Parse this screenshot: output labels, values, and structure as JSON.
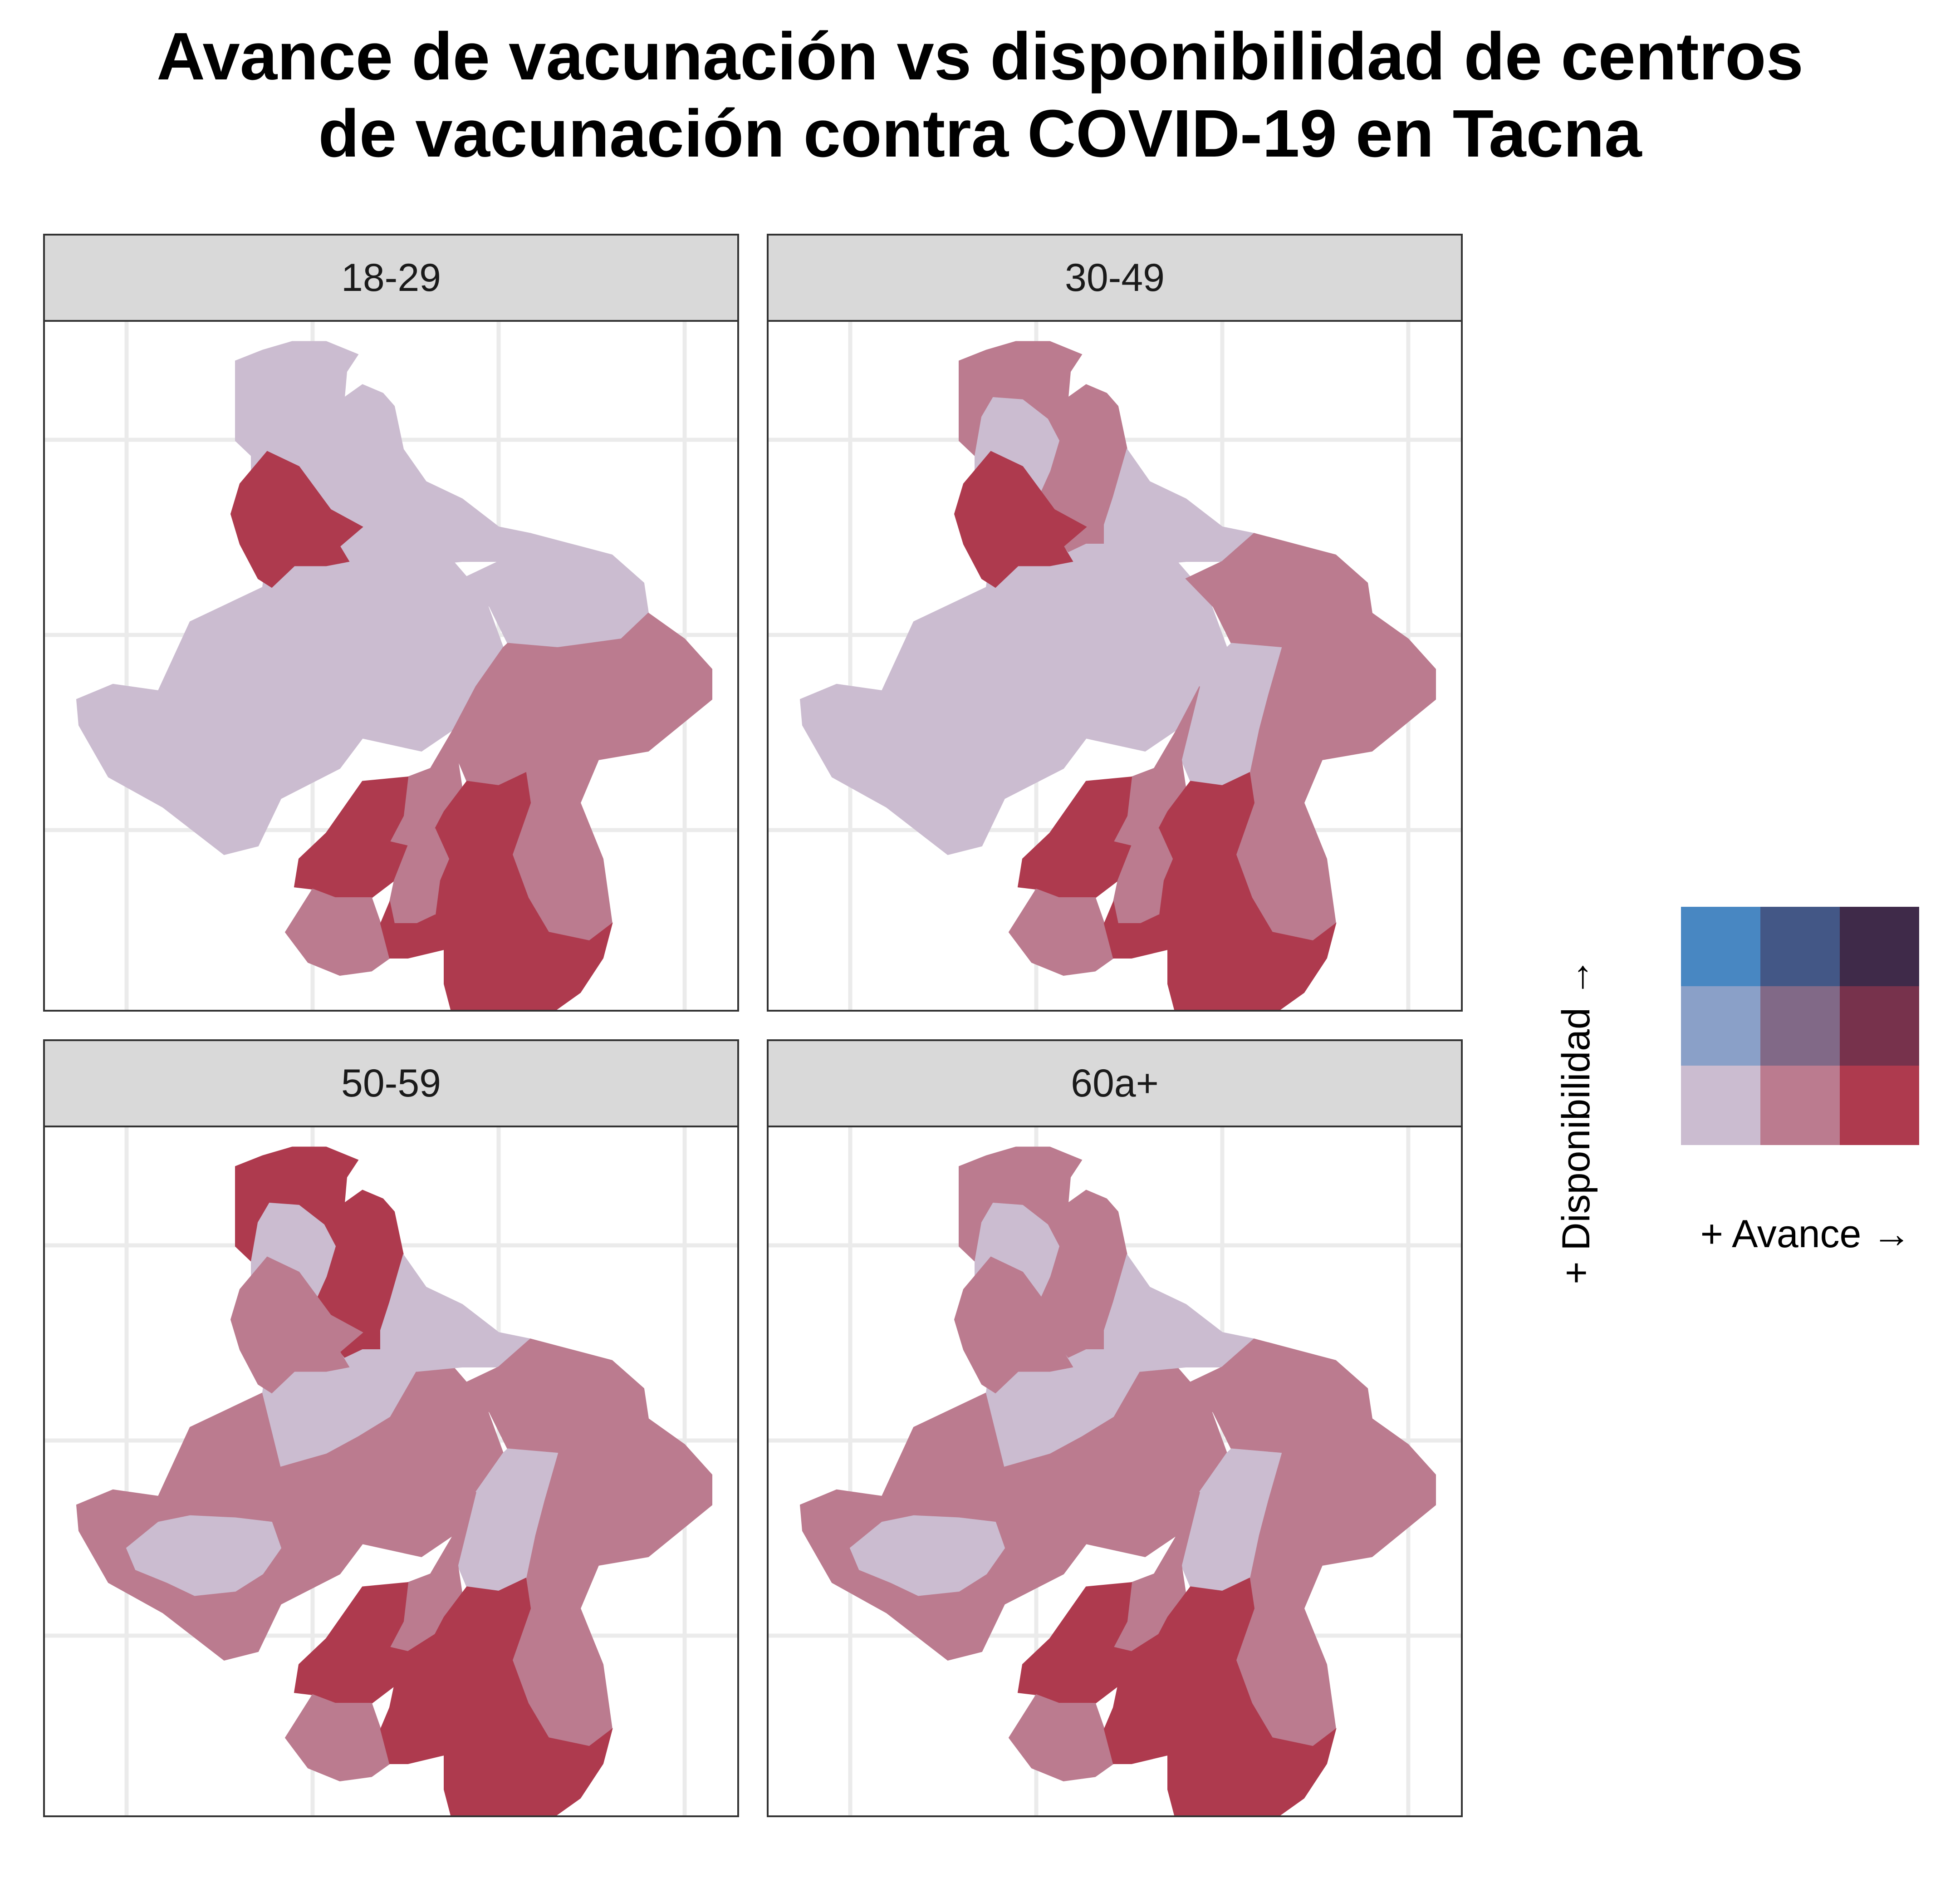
{
  "title": "Avance de vacunación vs disponibilidad de centros\nde vacunación contra COVID-19 en Tacna",
  "palette": {
    "c11": "#cbbcd0",
    "c21": "#bb7b8f",
    "c31": "#ae3a4e",
    "c12": "#8aa0c8",
    "c22": "#816987",
    "c32": "#77324c",
    "c13": "#4887c2",
    "c23": "#435786",
    "c33": "#3f2a49"
  },
  "panels": [
    {
      "label": "18-29",
      "districts": {
        "ilabaya": "c11",
        "candarave": "c11",
        "camilaco": "c11",
        "quilahuani": "c11",
        "curibaya": "c11",
        "huanuara": "c11",
        "tarata_n": "c11",
        "tarata": "c21",
        "sitajara": "c21",
        "ticaco": "c21",
        "locumba": "c31",
        "ite": "c11",
        "sama": "c21",
        "inclan": "c31",
        "tacna": "c21",
        "pachia": "c31",
        "calana": "c31",
        "pocollay": "c31",
        "ciudad": "c21",
        "alto_alianza": "c31",
        "palca": "c31"
      }
    },
    {
      "label": "30-49",
      "districts": {
        "ilabaya": "c11",
        "candarave": "c21",
        "camilaco": "c21",
        "quilahuani": "c11",
        "curibaya": "c11",
        "huanuara": "c11",
        "tarata_n": "c21",
        "tarata": "c21",
        "sitajara": "c11",
        "ticaco": "c21",
        "locumba": "c31",
        "ite": "c11",
        "sama": "c21",
        "inclan": "c31",
        "tacna": "c21",
        "pachia": "c31",
        "calana": "c31",
        "pocollay": "c31",
        "ciudad": "c21",
        "alto_alianza": "c31",
        "palca": "c31"
      }
    },
    {
      "label": "50-59",
      "districts": {
        "ilabaya": "c21",
        "candarave": "c31",
        "camilaco": "c31",
        "quilahuani": "c11",
        "curibaya": "c11",
        "huanuara": "c11",
        "tarata_n": "c21",
        "tarata": "c21",
        "sitajara": "c11",
        "ticaco": "c21",
        "locumba": "c21",
        "ite": "c11",
        "sama": "c21",
        "inclan": "c31",
        "tacna": "c21",
        "pachia": "c31",
        "calana": "c31",
        "pocollay": "c31",
        "ciudad": "c31",
        "alto_alianza": "c31",
        "palca": "c31"
      }
    },
    {
      "label": "60a+",
      "districts": {
        "ilabaya": "c21",
        "candarave": "c21",
        "camilaco": "c21",
        "quilahuani": "c11",
        "curibaya": "c11",
        "huanuara": "c11",
        "tarata_n": "c21",
        "tarata": "c21",
        "sitajara": "c11",
        "ticaco": "c21",
        "locumba": "c21",
        "ite": "c11",
        "sama": "c21",
        "inclan": "c31",
        "tacna": "c21",
        "pachia": "c31",
        "calana": "c31",
        "pocollay": "c31",
        "ciudad": "c31",
        "alto_alianza": "c31",
        "palca": "c31"
      }
    }
  ],
  "legend": {
    "y_label": "+ Disponibilidad  →",
    "x_label": "+ Avance  →"
  }
}
